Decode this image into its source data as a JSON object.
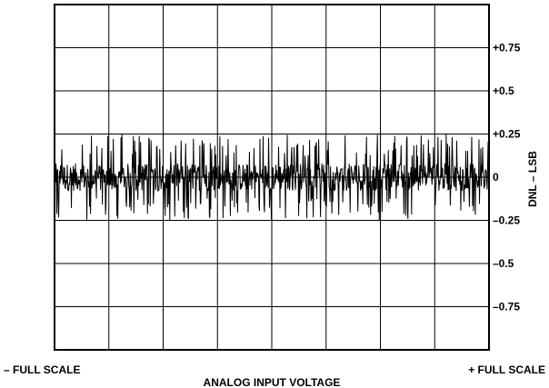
{
  "chart_data": {
    "type": "line",
    "title": "",
    "xlabel": "ANALOG INPUT VOLTAGE",
    "ylabel": "DNL – LSB",
    "x_tick_labels": {
      "left": "– FULL SCALE",
      "right": "+ FULL SCALE"
    },
    "y_ticks": [
      {
        "value": 0.75,
        "label": "+0.75"
      },
      {
        "value": 0.5,
        "label": "+0.5"
      },
      {
        "value": 0.25,
        "label": "+0.25"
      },
      {
        "value": 0,
        "label": "0"
      },
      {
        "value": -0.25,
        "label": "–0.25"
      },
      {
        "value": -0.5,
        "label": "–0.5"
      },
      {
        "value": -0.75,
        "label": "–0.75"
      }
    ],
    "ylim": [
      -1.0,
      1.0
    ],
    "grid": true,
    "grid_divisions": {
      "x": 8,
      "y": 8
    },
    "series": [
      {
        "description": "dense DNL noise across code range",
        "envelope_max": 0.25,
        "envelope_min": -0.25,
        "typical_band": [
          -0.08,
          0.08
        ]
      }
    ]
  },
  "colors": {
    "line": "#000000",
    "grid": "#000000",
    "background": "#ffffff"
  }
}
